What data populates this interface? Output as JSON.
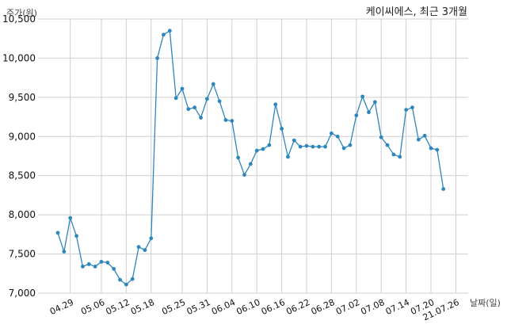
{
  "chart_data": {
    "type": "line",
    "title": "케이씨에스, 최근 3개월",
    "ylabel": "주가(원)",
    "xlabel": "날짜(일)",
    "ylim": [
      7000,
      10500
    ],
    "yticks": [
      7000,
      7500,
      8000,
      8500,
      9000,
      9500,
      10000,
      10500
    ],
    "ytick_labels": [
      "7,000",
      "7,500",
      "8,000",
      "8,500",
      "9,000",
      "9,500",
      "10,000",
      "10,500"
    ],
    "grid": true,
    "x_tick_labels": [
      "04.29",
      "05.06",
      "05.12",
      "05.18",
      "05.25",
      "05.31",
      "06.04",
      "06.10",
      "06.16",
      "06.22",
      "06.28",
      "07.02",
      "07.08",
      "07.14",
      "07.20",
      "21.07.26"
    ],
    "x_tick_indices": [
      2,
      7,
      11,
      15,
      20,
      24,
      28,
      32,
      36,
      40,
      44,
      48,
      52,
      56,
      60,
      64
    ],
    "series": [
      {
        "color": "#2e86bd",
        "values": [
          7770,
          7530,
          7960,
          7730,
          7340,
          7370,
          7340,
          7400,
          7390,
          7310,
          7170,
          7110,
          7180,
          7590,
          7550,
          7700,
          10000,
          10300,
          10350,
          9490,
          9610,
          9350,
          9370,
          9240,
          9480,
          9670,
          9450,
          9210,
          9200,
          8730,
          8510,
          8650,
          8820,
          8840,
          8890,
          9410,
          9100,
          8740,
          8950,
          8870,
          8880,
          8870,
          8870,
          8870,
          9040,
          9000,
          8850,
          8890,
          9270,
          9510,
          9310,
          9440,
          8990,
          8890,
          8770,
          8740,
          9340,
          9370,
          8960,
          9010,
          8850,
          8830,
          8330
        ]
      }
    ]
  }
}
